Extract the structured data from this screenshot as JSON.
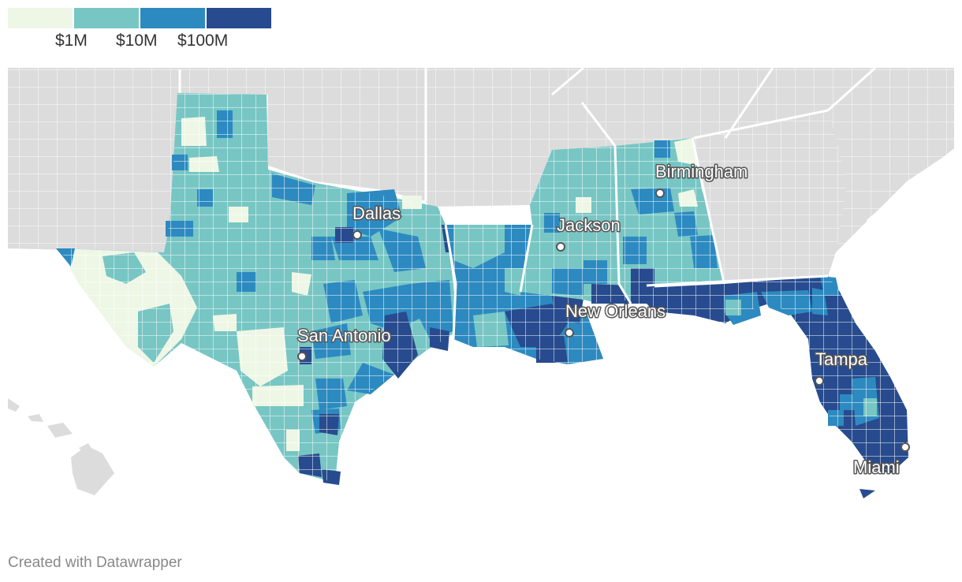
{
  "legend": {
    "colors": [
      "#eef7e6",
      "#77c6c4",
      "#2d8ac0",
      "#274b8e"
    ],
    "labels": [
      "$1M",
      "$10M",
      "$100M"
    ]
  },
  "colors": {
    "no_data": "#dcdcdc",
    "low": "#eef7e6",
    "mid_low": "#77c6c4",
    "mid_high": "#2d8ac0",
    "high": "#274b8e",
    "border": "#ffffff"
  },
  "cities": [
    {
      "name": "Dallas"
    },
    {
      "name": "Jackson"
    },
    {
      "name": "Birmingham"
    },
    {
      "name": "San Antonio"
    },
    {
      "name": "New Orleans"
    },
    {
      "name": "Tampa"
    },
    {
      "name": "Miami"
    }
  ],
  "credit": "Created with Datawrapper"
}
